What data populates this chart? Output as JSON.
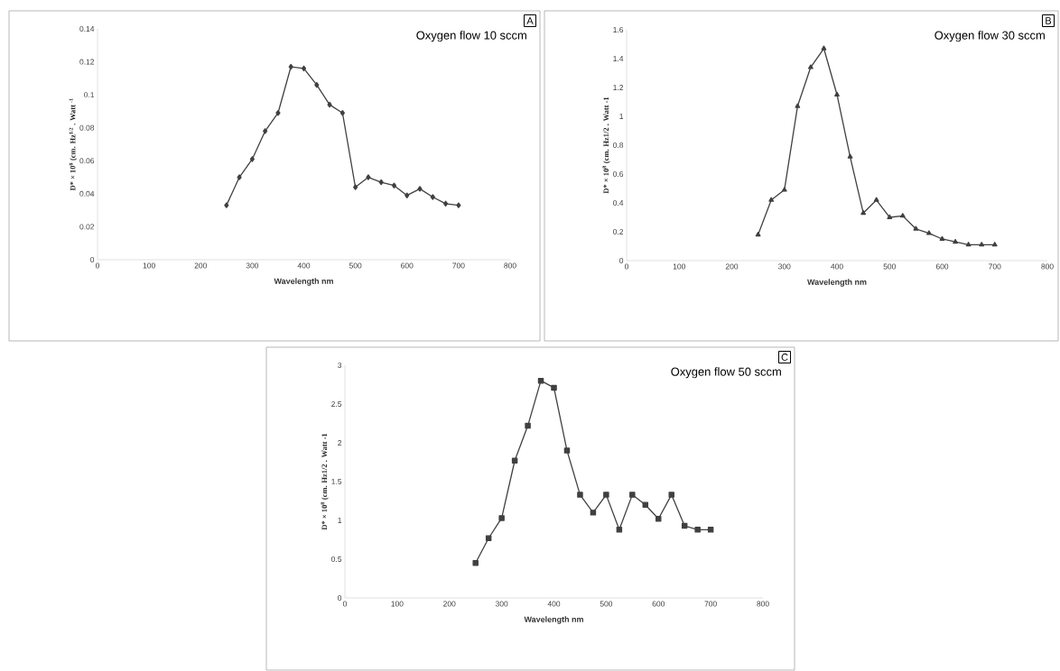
{
  "chart_data": [
    {
      "type": "line",
      "title": "Oxygen flow 10 sccm",
      "xlabel": "Wavelength nm",
      "ylabel": "D* × 10$^{8}$ (cm. Hz$^{1/2}$ . Watt $^{-1}$",
      "annotations": [
        "A"
      ],
      "marker": "diamond",
      "line_style": "solid",
      "x": [
        250,
        275,
        300,
        325,
        350,
        375,
        400,
        425,
        450,
        475,
        500,
        525,
        550,
        575,
        600,
        625,
        650,
        675,
        700
      ],
      "series": [
        {
          "color": "#404040",
          "values": [
            0.033,
            0.05,
            0.061,
            0.078,
            0.089,
            0.117,
            0.116,
            0.106,
            0.094,
            0.089,
            0.044,
            0.05,
            0.047,
            0.045,
            0.039,
            0.043,
            0.038,
            0.034,
            0.033
          ]
        }
      ],
      "xlim": [
        0,
        800
      ],
      "xticks": [
        0,
        100,
        200,
        300,
        400,
        500,
        600,
        700,
        800
      ],
      "ylim": [
        0,
        0.14
      ],
      "yticks": [
        0,
        0.02,
        0.04,
        0.06,
        0.08,
        0.1,
        0.12,
        0.14
      ]
    },
    {
      "type": "line",
      "title": "Oxygen flow 30 sccm",
      "xlabel": "Wavelength nm",
      "ylabel": "D* × 10$^{8}$ (cm. Hz1/2 . Watt -1",
      "annotations": [
        "B"
      ],
      "marker": "triangle",
      "line_style": "solid",
      "x": [
        250,
        275,
        300,
        325,
        350,
        375,
        400,
        425,
        450,
        475,
        500,
        525,
        550,
        575,
        600,
        625,
        650,
        675,
        700
      ],
      "series": [
        {
          "color": "#404040",
          "values": [
            0.18,
            0.42,
            0.49,
            1.07,
            1.34,
            1.47,
            1.15,
            0.72,
            0.33,
            0.42,
            0.3,
            0.31,
            0.22,
            0.19,
            0.15,
            0.13,
            0.11,
            0.11,
            0.11
          ]
        }
      ],
      "xlim": [
        0,
        800
      ],
      "xticks": [
        0,
        100,
        200,
        300,
        400,
        500,
        600,
        700,
        800
      ],
      "ylim": [
        0,
        1.6
      ],
      "yticks": [
        0,
        0.2,
        0.4,
        0.6,
        0.8,
        1,
        1.2,
        1.4,
        1.6
      ]
    },
    {
      "type": "line",
      "title": "Oxygen flow 50 sccm",
      "xlabel": "Wavelength nm",
      "ylabel": "D* × 10$^{8}$ (cm. Hz1/2 . Watt -1",
      "annotations": [
        "C"
      ],
      "marker": "square",
      "line_style": "solid",
      "x": [
        250,
        275,
        300,
        325,
        350,
        375,
        400,
        425,
        450,
        475,
        500,
        525,
        550,
        575,
        600,
        625,
        650,
        675,
        700
      ],
      "series": [
        {
          "color": "#404040",
          "values": [
            0.45,
            0.77,
            1.03,
            1.77,
            2.22,
            2.8,
            2.71,
            1.9,
            1.33,
            1.1,
            1.33,
            0.88,
            1.33,
            1.2,
            1.02,
            1.33,
            0.93,
            0.88,
            0.88
          ]
        }
      ],
      "xlim": [
        0,
        800
      ],
      "xticks": [
        0,
        100,
        200,
        300,
        400,
        500,
        600,
        700,
        800
      ],
      "ylim": [
        0,
        3
      ],
      "yticks": [
        0,
        0.5,
        1,
        1.5,
        2,
        2.5,
        3
      ]
    }
  ]
}
